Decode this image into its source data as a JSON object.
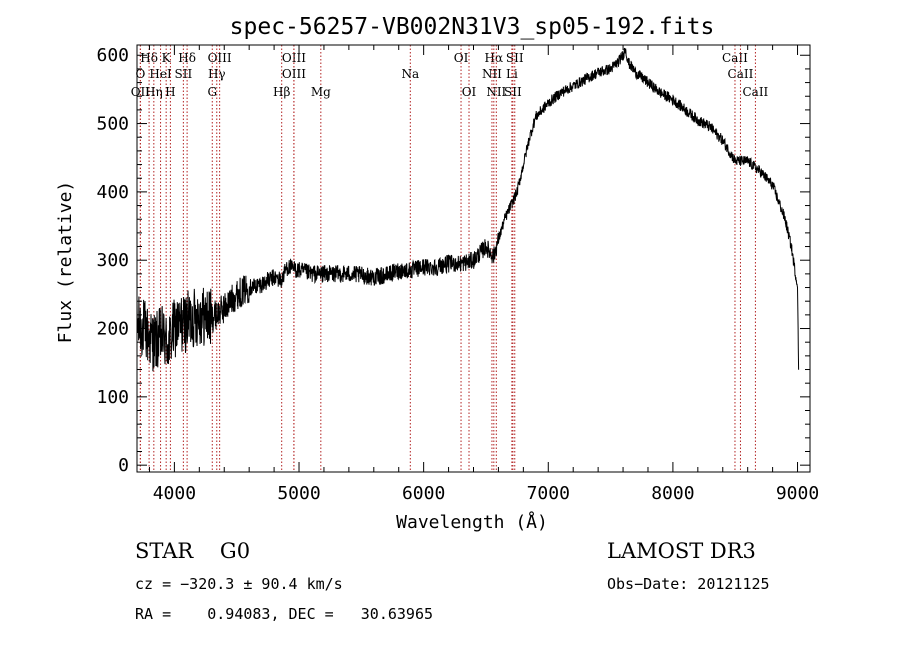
{
  "chart_data": {
    "type": "line",
    "title": "spec-56257-VB002N31V3_sp05-192.fits",
    "xlabel": "Wavelength (Å)",
    "ylabel": "Flux (relative)",
    "xlim": [
      3700,
      9100
    ],
    "ylim": [
      -10,
      615
    ],
    "xticks": [
      4000,
      5000,
      6000,
      7000,
      8000,
      9000
    ],
    "yticks": [
      0,
      100,
      200,
      300,
      400,
      500,
      600
    ],
    "grid": false,
    "series": [
      {
        "name": "spectrum",
        "x": [
          3700,
          3760,
          3800,
          3850,
          3900,
          3950,
          4000,
          4100,
          4200,
          4300,
          4400,
          4500,
          4600,
          4700,
          4800,
          4860,
          4900,
          5000,
          5100,
          5200,
          5300,
          5400,
          5500,
          5600,
          5700,
          5800,
          5900,
          6000,
          6100,
          6200,
          6300,
          6400,
          6500,
          6560,
          6600,
          6650,
          6700,
          6750,
          6800,
          6850,
          6900,
          7000,
          7100,
          7200,
          7300,
          7400,
          7500,
          7560,
          7600,
          7620,
          7640,
          7700,
          7800,
          7900,
          8000,
          8100,
          8200,
          8300,
          8400,
          8500,
          8600,
          8700,
          8800,
          8900,
          8950,
          9000,
          9010
        ],
        "y": [
          205,
          200,
          185,
          180,
          190,
          175,
          200,
          210,
          220,
          215,
          230,
          250,
          260,
          265,
          275,
          270,
          290,
          285,
          280,
          280,
          280,
          280,
          278,
          275,
          278,
          285,
          285,
          290,
          290,
          295,
          295,
          300,
          320,
          305,
          330,
          360,
          380,
          400,
          440,
          480,
          510,
          530,
          545,
          555,
          565,
          575,
          580,
          590,
          600,
          610,
          590,
          575,
          560,
          545,
          535,
          520,
          505,
          495,
          475,
          445,
          445,
          430,
          410,
          360,
          320,
          260,
          120
        ]
      }
    ],
    "line_groups": [
      {
        "labels": [
          "Hδ",
          "K",
          "Hδ",
          "OIII",
          "OIII",
          "OI",
          "Hα",
          "SII",
          "CaII"
        ],
        "wavelengths": [
          3797,
          3934,
          4102,
          4363,
          4959,
          6300,
          6563,
          6731,
          8498
        ]
      },
      {
        "labels": [
          "O",
          "HeI",
          "SII",
          "Hγ",
          "OIII",
          "Na",
          "NII",
          "Li",
          "CaII"
        ],
        "wavelengths": [
          3727,
          3889,
          4072,
          4340,
          4959,
          5893,
          6548,
          6708,
          8542
        ]
      },
      {
        "labels": [
          "OII",
          "Hη",
          "H",
          "G",
          "Hβ",
          "Mg",
          "OI",
          "NII",
          "SII",
          "CaII"
        ],
        "wavelengths": [
          3727,
          3835,
          3968,
          4304,
          4861,
          5175,
          6364,
          6583,
          6716,
          8662
        ]
      }
    ]
  },
  "footer": {
    "object": "STAR    G0",
    "survey": "LAMOST DR3",
    "cz": "cz = −320.3 ± 90.4 km/s",
    "obs_date": "Obs−Date: 20121125",
    "coords": "RA =    0.94083, DEC =   30.63965"
  },
  "colors": {
    "axes": "#000000",
    "spectrum": "#000000",
    "line_marker": "#b22222"
  }
}
